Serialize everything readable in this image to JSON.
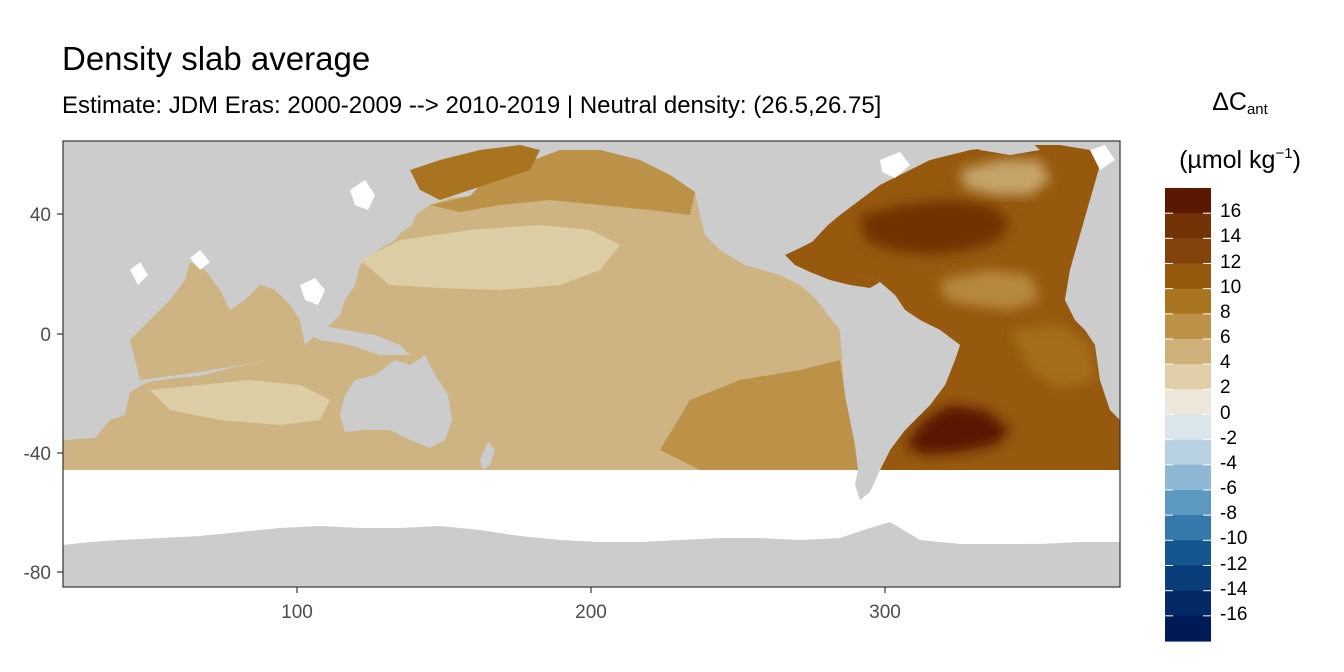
{
  "title": "Density slab average",
  "subtitle": "Estimate: JDM Eras: 2000-2009 --> 2010-2019 | Neutral density: (26.5,26.75]",
  "legend": {
    "title_main": "ΔC",
    "title_sub": "ant",
    "title_units_pre": "(µmol kg",
    "title_units_sup": "−1",
    "title_units_post": ")",
    "labels": [
      "16",
      "14",
      "12",
      "10",
      "8",
      "6",
      "4",
      "2",
      "0",
      "-2",
      "-4",
      "-6",
      "-8",
      "-10",
      "-12",
      "-14",
      "-16"
    ],
    "colors": [
      "#5a1802",
      "#723206",
      "#83430a",
      "#96590e",
      "#a8741f",
      "#bc9249",
      "#cfb27a",
      "#e0cfa8",
      "#ede6db",
      "#dbe6ec",
      "#b7d1e1",
      "#8db7d3",
      "#5b99c1",
      "#3478ac",
      "#14568f",
      "#093e7a",
      "#032a66",
      "#001a56"
    ]
  },
  "axes": {
    "x_ticks": [
      "100",
      "200",
      "300"
    ],
    "y_ticks": [
      "40",
      "0",
      "-40",
      "-80"
    ],
    "xlim": [
      20,
      380
    ],
    "ylim": [
      -85,
      65
    ]
  },
  "colors": {
    "land": "#cccccc",
    "panel_border": "#333333",
    "grid": "#ebebeb"
  }
}
